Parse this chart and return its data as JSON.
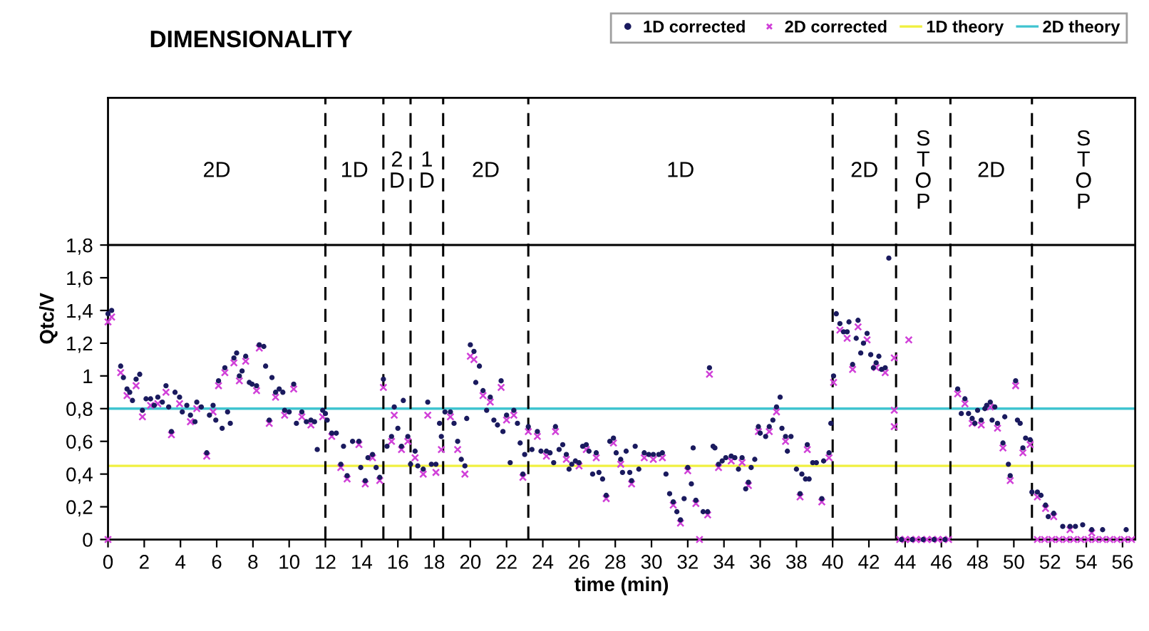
{
  "chart_data": {
    "type": "scatter",
    "title": "DIMENSIONALITY",
    "xlabel": "time (min)",
    "ylabel": "Qtc/V",
    "xlim": [
      0,
      56.7
    ],
    "ylim": [
      0,
      2.7
    ],
    "xticks": [
      0,
      2,
      4,
      6,
      8,
      10,
      12,
      14,
      16,
      18,
      20,
      22,
      24,
      26,
      28,
      30,
      32,
      34,
      36,
      38,
      40,
      42,
      44,
      46,
      48,
      50,
      52,
      54,
      56
    ],
    "yticks": [
      0,
      {
        "value": 0.2,
        "label": "0,2"
      },
      {
        "value": 0.4,
        "label": "0,4"
      },
      {
        "value": 0.6,
        "label": "0,6"
      },
      {
        "value": 0.8,
        "label": "0,8"
      },
      1,
      {
        "value": 1.2,
        "label": "1,2"
      },
      {
        "value": 1.4,
        "label": "1,4"
      },
      {
        "value": 1.6,
        "label": "1,6"
      },
      {
        "value": 1.8,
        "label": "1,8"
      }
    ],
    "grid": false,
    "legend": "top right",
    "series": [
      {
        "name": "1D corrected",
        "marker": "circle",
        "color": "#1a1a5e",
        "x": [
          0,
          0.2,
          0.7,
          0.85,
          1.05,
          1.2,
          1.35,
          1.55,
          1.75,
          1.9,
          2.1,
          2.35,
          2.55,
          2.75,
          3.0,
          3.2,
          3.35,
          3.5,
          3.7,
          3.95,
          4.1,
          4.35,
          4.55,
          4.8,
          4.9,
          5.15,
          5.45,
          5.6,
          5.8,
          5.95,
          6.1,
          6.3,
          6.45,
          6.6,
          6.75,
          6.95,
          7.1,
          7.25,
          7.4,
          7.6,
          7.8,
          7.95,
          8.2,
          8.35,
          8.6,
          8.7,
          8.9,
          9.05,
          9.25,
          9.45,
          9.65,
          9.75,
          10.0,
          10.25,
          10.4,
          10.7,
          10.95,
          11.2,
          11.4,
          11.55,
          11.85,
          12.0,
          12.1,
          12.35,
          12.6,
          12.85,
          13.0,
          13.2,
          13.5,
          13.85,
          13.95,
          14.2,
          14.35,
          14.6,
          14.8,
          15.0,
          15.2,
          15.4,
          15.65,
          15.8,
          16.0,
          16.2,
          16.3,
          16.55,
          16.7,
          16.95,
          17.1,
          17.4,
          17.65,
          17.85,
          18.1,
          18.3,
          18.4,
          18.6,
          18.9,
          19.1,
          19.3,
          19.5,
          19.7,
          19.8,
          20.0,
          20.2,
          20.3,
          20.5,
          20.7,
          20.9,
          21.1,
          21.3,
          21.5,
          21.7,
          21.8,
          22.0,
          22.2,
          22.4,
          22.6,
          22.75,
          22.9,
          23.0,
          23.2,
          23.4,
          23.7,
          23.9,
          24.2,
          24.4,
          24.6,
          24.7,
          24.9,
          25.1,
          25.3,
          25.45,
          25.6,
          25.8,
          26.0,
          26.2,
          26.4,
          26.55,
          26.75,
          26.95,
          27.1,
          27.3,
          27.5,
          27.7,
          27.9,
          28.05,
          28.3,
          28.4,
          28.6,
          28.8,
          28.9,
          29.1,
          29.3,
          29.6,
          29.85,
          30.1,
          30.4,
          30.6,
          30.8,
          31.0,
          31.2,
          31.4,
          31.6,
          31.8,
          32.0,
          32.2,
          32.3,
          32.45,
          32.85,
          33.1,
          33.2,
          33.4,
          33.5,
          33.7,
          33.9,
          34.1,
          34.4,
          34.6,
          34.8,
          35.0,
          35.2,
          35.35,
          35.5,
          35.7,
          35.9,
          36.0,
          36.3,
          36.5,
          36.7,
          36.9,
          37.1,
          37.2,
          37.4,
          37.5,
          37.7,
          38.0,
          38.2,
          38.3,
          38.5,
          38.6,
          38.7,
          38.9,
          39.1,
          39.4,
          39.5,
          39.8,
          39.9,
          40.05,
          40.2,
          40.4,
          40.6,
          40.8,
          40.9,
          41.1,
          41.3,
          41.4,
          41.55,
          41.7,
          41.9,
          42.1,
          42.25,
          42.4,
          42.55,
          42.7,
          42.9,
          43.1,
          43.8,
          44.4,
          45.0,
          45.6,
          46.2,
          46.9,
          47.1,
          47.3,
          47.5,
          47.7,
          47.85,
          48.0,
          48.2,
          48.4,
          48.5,
          48.7,
          48.8,
          48.95,
          49.1,
          49.4,
          49.5,
          49.7,
          49.8,
          50.1,
          50.2,
          50.35,
          50.5,
          50.65,
          50.9,
          51.0,
          51.3,
          51.5,
          51.75,
          51.9,
          52.2,
          52.7,
          53.1,
          53.4,
          53.8,
          54.3,
          54.9,
          56.2
        ],
        "values": [
          1.38,
          1.4,
          1.06,
          0.99,
          0.92,
          0.9,
          0.85,
          0.98,
          1.01,
          0.79,
          0.86,
          0.86,
          0.82,
          0.87,
          0.84,
          0.94,
          0.81,
          0.66,
          0.9,
          0.87,
          0.78,
          0.82,
          0.76,
          0.72,
          0.84,
          0.81,
          0.53,
          0.76,
          0.82,
          0.73,
          0.97,
          0.68,
          1.05,
          0.78,
          0.71,
          1.11,
          1.14,
          1.0,
          1.03,
          1.12,
          0.96,
          0.95,
          0.94,
          1.19,
          1.18,
          1.06,
          0.73,
          0.99,
          0.9,
          0.92,
          0.9,
          0.79,
          0.78,
          0.95,
          0.71,
          0.78,
          0.72,
          0.73,
          0.72,
          0.55,
          0.79,
          0.77,
          0.73,
          0.65,
          0.65,
          0.46,
          0.57,
          0.39,
          0.6,
          0.6,
          0.44,
          0.36,
          0.5,
          0.52,
          0.44,
          0.38,
          0.98,
          0.57,
          0.63,
          0.81,
          0.68,
          0.57,
          0.85,
          0.63,
          0.46,
          0.54,
          0.45,
          0.43,
          0.84,
          0.46,
          0.46,
          0.71,
          0.63,
          0.78,
          0.78,
          0.71,
          0.6,
          0.49,
          0.45,
          0.74,
          1.19,
          1.15,
          0.96,
          1.06,
          0.91,
          0.79,
          0.87,
          0.73,
          0.7,
          0.97,
          0.66,
          0.76,
          0.47,
          0.79,
          0.71,
          0.59,
          0.4,
          0.52,
          0.69,
          0.55,
          0.66,
          0.54,
          0.54,
          0.53,
          0.47,
          0.69,
          0.55,
          0.58,
          0.52,
          0.43,
          0.46,
          0.48,
          0.47,
          0.57,
          0.58,
          0.54,
          0.4,
          0.53,
          0.41,
          0.37,
          0.27,
          0.6,
          0.62,
          0.53,
          0.49,
          0.41,
          0.54,
          0.41,
          0.36,
          0.57,
          0.43,
          0.53,
          0.52,
          0.52,
          0.52,
          0.53,
          0.4,
          0.28,
          0.23,
          0.17,
          0.12,
          0.25,
          0.44,
          0.34,
          0.56,
          0.24,
          0.17,
          0.17,
          1.05,
          0.57,
          0.56,
          0.46,
          0.48,
          0.5,
          0.51,
          0.5,
          0.43,
          0.5,
          0.31,
          0.35,
          0.44,
          0.49,
          0.69,
          0.65,
          0.63,
          0.69,
          0.73,
          0.81,
          0.87,
          0.68,
          0.63,
          0.54,
          0.63,
          0.43,
          0.28,
          0.4,
          0.37,
          0.58,
          0.37,
          0.47,
          0.47,
          0.25,
          0.48,
          0.53,
          0.71,
          1.0,
          1.38,
          1.32,
          1.27,
          1.27,
          1.33,
          1.07,
          1.23,
          1.34,
          1.14,
          1.2,
          1.26,
          1.13,
          1.05,
          1.08,
          1.12,
          1.04,
          1.05,
          1.72,
          0,
          0,
          0,
          0,
          0,
          0.92,
          0.77,
          0.86,
          0.77,
          0.74,
          0.71,
          0.79,
          0.73,
          0.8,
          0.82,
          0.84,
          0.73,
          0.81,
          0.71,
          0.59,
          0.75,
          0.46,
          0.39,
          0.97,
          0.73,
          0.71,
          0.56,
          0.62,
          0.61,
          0.29,
          0.29,
          0.27,
          0.21,
          0.14,
          0.16,
          0.08,
          0.08,
          0.08,
          0.09,
          0.06,
          0.06,
          0.06
        ]
      },
      {
        "name": "2D corrected",
        "marker": "cross",
        "color": "#d040d8",
        "x": [
          0,
          0,
          0.2,
          0.7,
          1.05,
          1.55,
          1.9,
          2.35,
          2.75,
          3.2,
          3.5,
          3.95,
          4.55,
          4.9,
          5.45,
          5.8,
          6.1,
          6.45,
          6.95,
          7.25,
          7.6,
          8.2,
          8.35,
          8.9,
          9.25,
          9.75,
          10.25,
          10.7,
          11.2,
          11.85,
          12.35,
          12.85,
          13.2,
          13.85,
          14.2,
          14.6,
          15.0,
          15.2,
          15.65,
          15.8,
          16.2,
          16.55,
          16.95,
          17.4,
          17.65,
          18.1,
          18.4,
          18.9,
          19.3,
          19.7,
          20.0,
          20.2,
          20.7,
          21.1,
          21.7,
          22.0,
          22.4,
          22.9,
          23.2,
          23.7,
          24.2,
          24.7,
          25.3,
          26.0,
          26.4,
          26.95,
          27.5,
          27.9,
          28.3,
          28.9,
          29.6,
          30.1,
          30.6,
          31.2,
          31.6,
          32.0,
          32.45,
          32.65,
          33.1,
          33.2,
          33.7,
          34.4,
          35.0,
          35.35,
          35.9,
          36.5,
          36.9,
          37.4,
          38.2,
          38.6,
          39.4,
          39.8,
          40.05,
          40.4,
          40.8,
          41.1,
          41.4,
          41.9,
          42.4,
          42.9,
          43.4,
          43.4,
          43.4,
          43.7,
          44.0,
          44.2,
          44.3,
          44.6,
          44.9,
          45.2,
          45.5,
          45.8,
          46.1,
          46.4,
          46.9,
          47.3,
          47.7,
          48.2,
          48.7,
          49.1,
          49.4,
          49.8,
          50.1,
          50.5,
          50.9,
          51.3,
          51.75,
          52.2,
          51.3,
          51.7,
          52.1,
          52.5,
          52.9,
          53.3,
          53.7,
          54.1,
          54.5,
          54.9,
          55.3,
          55.7,
          56.1,
          56.5,
          53.1,
          54.3
        ],
        "values": [
          1.33,
          0,
          1.36,
          1.02,
          0.88,
          0.94,
          0.75,
          0.82,
          0.83,
          0.9,
          0.64,
          0.83,
          0.72,
          0.8,
          0.51,
          0.78,
          0.94,
          1.02,
          1.08,
          0.97,
          1.09,
          0.91,
          1.17,
          0.71,
          0.87,
          0.76,
          0.92,
          0.75,
          0.7,
          0.75,
          0.63,
          0.44,
          0.37,
          0.58,
          0.34,
          0.5,
          0.36,
          0.93,
          0.6,
          0.76,
          0.55,
          0.6,
          0.5,
          0.4,
          0.76,
          0.41,
          0.55,
          0.75,
          0.55,
          0.4,
          1.12,
          1.1,
          0.88,
          0.84,
          0.93,
          0.73,
          0.76,
          0.38,
          0.66,
          0.63,
          0.51,
          0.66,
          0.49,
          0.45,
          0.55,
          0.5,
          0.25,
          0.59,
          0.46,
          0.34,
          0.5,
          0.49,
          0.5,
          0.21,
          0.1,
          0.42,
          0.22,
          0,
          0.15,
          1.01,
          0.44,
          0.48,
          0.47,
          0.33,
          0.66,
          0.66,
          0.78,
          0.6,
          0.26,
          0.55,
          0.23,
          0.5,
          0.96,
          1.28,
          1.23,
          1.04,
          1.3,
          1.22,
          1.05,
          1.02,
          1.11,
          0.79,
          0.69,
          0,
          0,
          1.22,
          0,
          0,
          0,
          0,
          0,
          0,
          0,
          0,
          0.89,
          0.83,
          0.71,
          0.7,
          0.81,
          0.68,
          0.56,
          0.36,
          0.94,
          0.53,
          0.58,
          0.26,
          0.19,
          0.14,
          0,
          0,
          0,
          0,
          0,
          0,
          0,
          0,
          0,
          0,
          0,
          0,
          0,
          0,
          0.06,
          0.04
        ]
      },
      {
        "name": "1D theory",
        "type": "line",
        "color": "#f0f040",
        "x": [
          0,
          56.7
        ],
        "values": [
          0.45,
          0.45
        ]
      },
      {
        "name": "2D theory",
        "type": "line",
        "color": "#40c4d0",
        "x": [
          0,
          56.7
        ],
        "values": [
          0.8,
          0.8
        ]
      }
    ],
    "ref_lines": [
      {
        "axis": "y",
        "value": 1.8,
        "color": "#000000",
        "line_style": "solid"
      },
      {
        "axis": "x",
        "value": 12,
        "color": "#000000",
        "line_style": "dashed"
      },
      {
        "axis": "x",
        "value": 15.2,
        "color": "#000000",
        "line_style": "dashed"
      },
      {
        "axis": "x",
        "value": 16.7,
        "color": "#000000",
        "line_style": "dashed"
      },
      {
        "axis": "x",
        "value": 18.5,
        "color": "#000000",
        "line_style": "dashed"
      },
      {
        "axis": "x",
        "value": 23.2,
        "color": "#000000",
        "line_style": "dashed"
      },
      {
        "axis": "x",
        "value": 40,
        "color": "#000000",
        "line_style": "dashed"
      },
      {
        "axis": "x",
        "value": 43.5,
        "color": "#000000",
        "line_style": "dashed"
      },
      {
        "axis": "x",
        "value": 46.5,
        "color": "#000000",
        "line_style": "dashed"
      },
      {
        "axis": "x",
        "value": 51,
        "color": "#000000",
        "line_style": "dashed"
      }
    ],
    "annotations": [
      "2D",
      "1D",
      "2\nD",
      "1\nD",
      "2D",
      "1D",
      "2D",
      "S\nT\nO\nP",
      "2D",
      "S\nT\nO\nP"
    ]
  }
}
